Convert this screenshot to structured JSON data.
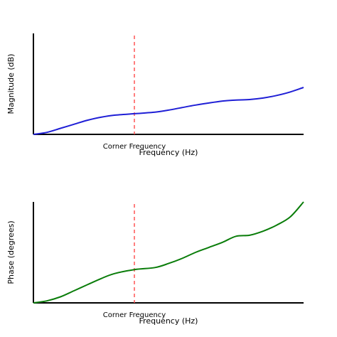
{
  "chart_data": [
    {
      "type": "line",
      "xlabel": "Frequency (Hz)",
      "ylabel": "Magnitude (dB)",
      "xlim": [
        0,
        1
      ],
      "ylim": [
        0,
        1
      ],
      "grid": false,
      "annotation": {
        "label": "Corner Frequency",
        "x": 0.375,
        "style": "dashed",
        "color": "#ff5555"
      },
      "series": [
        {
          "color": "#1f1fd6",
          "x": [
            0,
            0.05,
            0.1,
            0.15,
            0.2,
            0.25,
            0.3,
            0.375,
            0.45,
            0.5,
            0.6,
            0.7,
            0.75,
            0.8,
            0.85,
            0.9,
            0.95,
            1.0
          ],
          "y": [
            0,
            0.02,
            0.06,
            0.1,
            0.14,
            0.17,
            0.19,
            0.205,
            0.22,
            0.24,
            0.29,
            0.33,
            0.34,
            0.345,
            0.36,
            0.385,
            0.42,
            0.465
          ]
        }
      ]
    },
    {
      "type": "line",
      "xlabel": "Frequency (Hz)",
      "ylabel": "Phase (degrees)",
      "xlim": [
        0,
        1
      ],
      "ylim": [
        0,
        1
      ],
      "grid": false,
      "annotation": {
        "label": "Corner Frequency",
        "x": 0.375,
        "style": "dashed",
        "color": "#ff5555"
      },
      "series": [
        {
          "color": "#0a7d0a",
          "x": [
            0,
            0.05,
            0.1,
            0.15,
            0.2,
            0.25,
            0.3,
            0.375,
            0.45,
            0.5,
            0.55,
            0.6,
            0.65,
            0.7,
            0.75,
            0.8,
            0.85,
            0.9,
            0.95,
            1.0
          ],
          "y": [
            0,
            0.02,
            0.06,
            0.12,
            0.18,
            0.24,
            0.29,
            0.33,
            0.35,
            0.39,
            0.44,
            0.5,
            0.55,
            0.6,
            0.66,
            0.67,
            0.71,
            0.77,
            0.85,
            1.0
          ]
        }
      ]
    }
  ]
}
